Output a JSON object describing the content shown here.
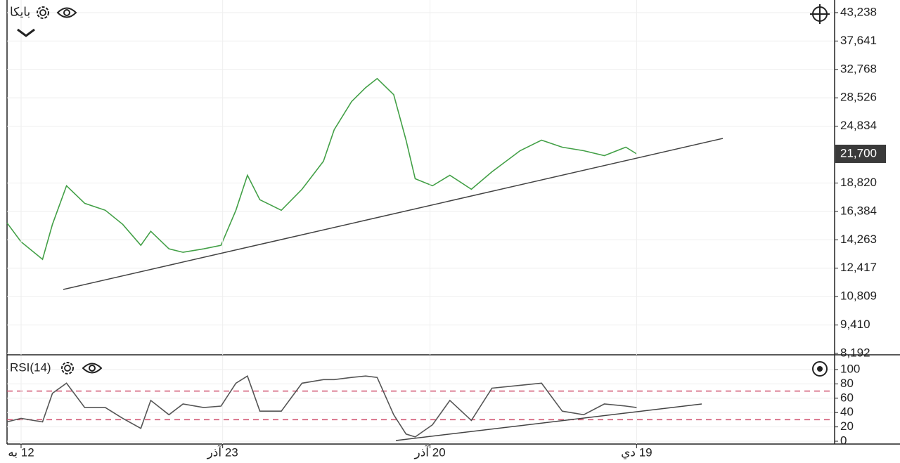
{
  "chart_data": [
    {
      "type": "line",
      "title": "بایکا",
      "log_scale": true,
      "grid": true,
      "x": [
        0,
        1.7,
        4.3,
        5.5,
        7.2,
        9.4,
        11.9,
        14.0,
        16.2,
        17.4,
        19.6,
        21.3,
        23.8,
        25.9,
        27.7,
        29.1,
        30.6,
        33.2,
        35.7,
        38.3,
        39.6,
        41.7,
        43.4,
        44.8,
        46.8,
        48.3,
        49.4,
        51.5,
        53.6,
        56.2,
        58.7,
        62.1,
        64.7,
        67.2,
        69.8,
        72.3,
        74.9,
        76.2
      ],
      "series": [
        {
          "color": "#43a047",
          "values": [
            15488,
            14122,
            12968,
            15382,
            18569,
            17042,
            16472,
            15382,
            13883,
            14867,
            13648,
            13419,
            13648,
            13883,
            16472,
            19548,
            17341,
            16472,
            18256,
            20932,
            24418,
            28000,
            29982,
            31343,
            28971,
            23195,
            19217,
            18569,
            19548,
            18256,
            19884,
            22036,
            23195,
            22413,
            22036,
            21512,
            22413,
            21700
          ]
        }
      ],
      "xlim": [
        0,
        100
      ],
      "ylim": [
        8136,
        45985
      ],
      "yticks": [
        {
          "value": 43238,
          "label": "43,238"
        },
        {
          "value": 37641,
          "label": "37,641"
        },
        {
          "value": 32768,
          "label": "32,768"
        },
        {
          "value": 28526,
          "label": "28,526"
        },
        {
          "value": 24834,
          "label": "24,834"
        },
        {
          "value": 18820,
          "label": "18,820"
        },
        {
          "value": 16384,
          "label": "16,384"
        },
        {
          "value": 14263,
          "label": "14,263"
        },
        {
          "value": 12417,
          "label": "12,417"
        },
        {
          "value": 10809,
          "label": "10,809"
        },
        {
          "value": 9410,
          "label": "9,410"
        },
        {
          "value": 8192,
          "label": "8,192"
        }
      ],
      "last_price": {
        "value": 21700,
        "label": "21,700"
      }
    },
    {
      "type": "line",
      "title": "RSI(14)",
      "grid": true,
      "x": [
        0,
        1.7,
        4.3,
        5.5,
        7.2,
        9.4,
        11.9,
        14.0,
        16.2,
        17.4,
        19.6,
        21.3,
        23.8,
        25.9,
        27.7,
        29.1,
        30.6,
        33.2,
        35.7,
        38.3,
        39.6,
        41.7,
        43.4,
        44.8,
        46.8,
        48.3,
        49.4,
        51.5,
        53.6,
        56.2,
        58.7,
        62.1,
        64.7,
        67.2,
        69.8,
        72.3,
        74.9,
        76.2
      ],
      "series": [
        {
          "color": "#555555",
          "values": [
            27,
            32,
            27,
            67,
            81,
            47,
            47,
            32,
            18,
            57,
            37,
            52,
            47,
            49,
            81,
            91,
            42,
            42,
            81,
            86,
            86,
            89,
            91,
            89,
            37,
            10,
            6,
            23,
            57,
            29,
            74,
            78,
            81,
            42,
            37,
            52,
            49,
            47
          ]
        }
      ],
      "xlim": [
        0,
        100
      ],
      "ylim": [
        -3.9,
        118.6
      ],
      "yticks": [
        0,
        20,
        40,
        60,
        80,
        100
      ],
      "hlines": [
        70,
        30
      ],
      "hline_color": "#d0506e",
      "xticks": [
        {
          "value": 1.7,
          "label": "12 به"
        },
        {
          "value": 26.1,
          "label": "23 آذر"
        },
        {
          "value": 51.2,
          "label": "20 آذر"
        },
        {
          "value": 76.2,
          "label": "19 دي"
        }
      ]
    }
  ]
}
